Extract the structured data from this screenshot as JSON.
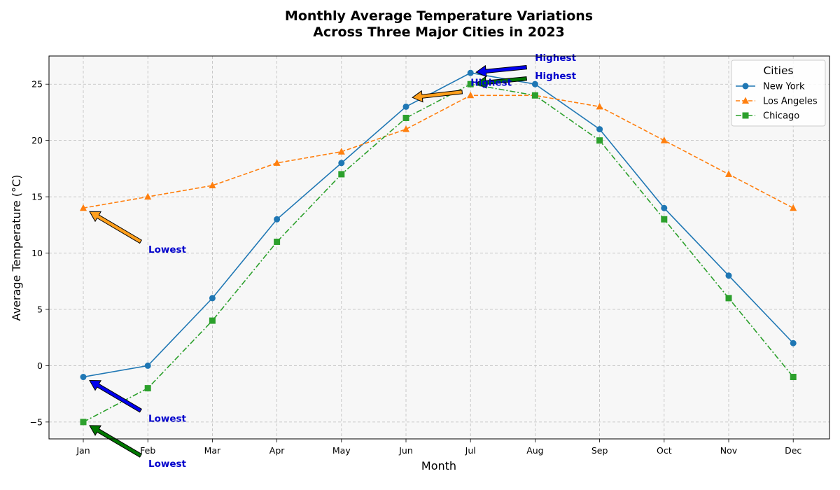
{
  "chart_data": {
    "type": "line",
    "title_line1": "Monthly Average Temperature Variations",
    "title_line2": "Across Three Major Cities in 2023",
    "xlabel": "Month",
    "ylabel": "Average Temperature (°C)",
    "categories": [
      "Jan",
      "Feb",
      "Mar",
      "Apr",
      "May",
      "Jun",
      "Jul",
      "Aug",
      "Sep",
      "Oct",
      "Nov",
      "Dec"
    ],
    "ylim": [
      -6.5,
      27.5
    ],
    "yticks": [
      -5,
      0,
      5,
      10,
      15,
      20,
      25
    ],
    "grid": true,
    "legend_title": "Cities",
    "legend_position": "top-right",
    "series": [
      {
        "name": "New York",
        "color": "#1f77b4",
        "marker": "circle",
        "linestyle": "solid",
        "values": [
          -1,
          0,
          6,
          13,
          18,
          23,
          26,
          25,
          21,
          14,
          8,
          2
        ]
      },
      {
        "name": "Los Angeles",
        "color": "#ff7f0e",
        "marker": "triangle",
        "linestyle": "dashed",
        "values": [
          14,
          15,
          16,
          18,
          19,
          21,
          24,
          24,
          23,
          20,
          17,
          14
        ]
      },
      {
        "name": "Chicago",
        "color": "#2ca02c",
        "marker": "square",
        "linestyle": "dashdot",
        "values": [
          -5,
          -2,
          4,
          11,
          17,
          22,
          25,
          24,
          20,
          13,
          6,
          -1
        ]
      }
    ],
    "annotations": [
      {
        "series": "Los Angeles",
        "text": "Lowest",
        "point": [
          "Jan",
          14
        ],
        "arrow_color": "#ff9f1c"
      },
      {
        "series": "New York",
        "text": "Lowest",
        "point": [
          "Jan",
          -1
        ],
        "arrow_color": "#0000ee"
      },
      {
        "series": "Chicago",
        "text": "Lowest",
        "point": [
          "Jan",
          -5
        ],
        "arrow_color": "#007800"
      },
      {
        "series": "New York",
        "text": "Highest",
        "point": [
          "Jul",
          26
        ],
        "arrow_color": "#0000ee"
      },
      {
        "series": "Chicago",
        "text": "Highest",
        "point": [
          "Jul",
          25
        ],
        "arrow_color": "#007800"
      },
      {
        "series": "Los Angeles",
        "text": "Highest",
        "point": [
          "Jul",
          24
        ],
        "arrow_color": "#ff9f1c"
      }
    ]
  }
}
